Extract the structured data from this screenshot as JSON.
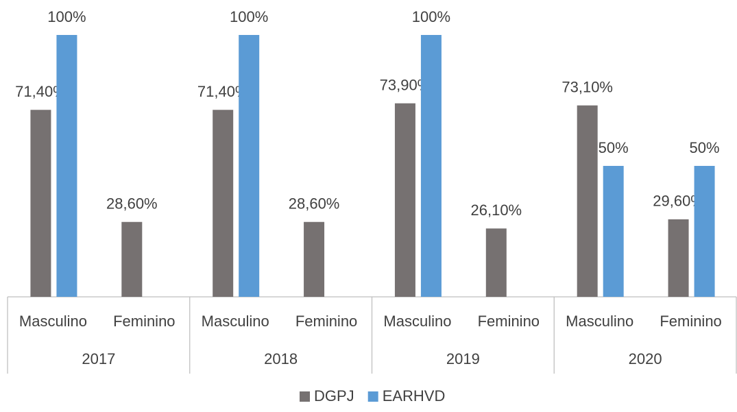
{
  "chart_data": {
    "type": "bar",
    "categories": [
      "Masculino",
      "Feminino",
      "Masculino",
      "Feminino",
      "Masculino",
      "Feminino",
      "Masculino",
      "Feminino"
    ],
    "groups": [
      "2017",
      "2018",
      "2019",
      "2020"
    ],
    "series": [
      {
        "name": "DGPJ",
        "color": "#767171",
        "values": [
          71.4,
          28.6,
          71.4,
          28.6,
          73.9,
          26.1,
          73.1,
          29.6
        ],
        "value_labels": [
          "71,40%",
          "28,60%",
          "71,40%",
          "28,60%",
          "73,90%",
          "26,10%",
          "73,10%",
          "29,60%"
        ]
      },
      {
        "name": "EARHVD",
        "color": "#5b9bd5",
        "values": [
          100,
          null,
          100,
          null,
          100,
          null,
          50,
          50
        ],
        "value_labels": [
          "100%",
          null,
          "100%",
          null,
          "100%",
          null,
          "50%",
          "50%"
        ]
      }
    ],
    "ylim": [
      0,
      100
    ],
    "legend": "bottom"
  }
}
